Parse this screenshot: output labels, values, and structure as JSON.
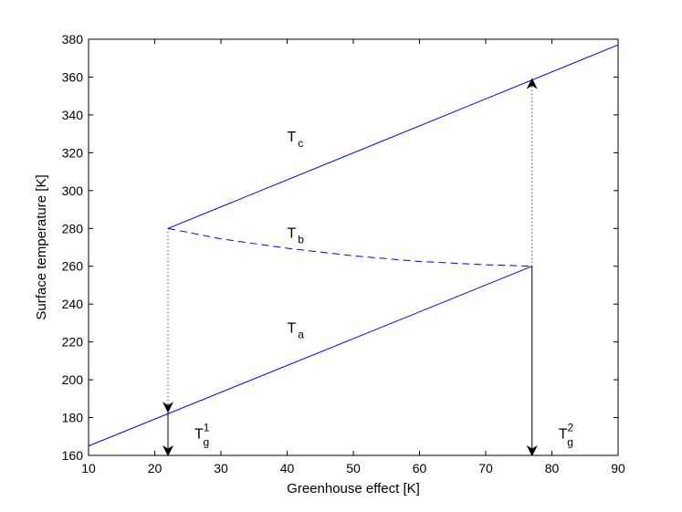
{
  "chart_data": {
    "type": "line",
    "xlabel": "Greenhouse effect [K]",
    "ylabel": "Surface temperature [K]",
    "xlim": [
      10,
      90
    ],
    "ylim": [
      160,
      380
    ],
    "xticks": [
      10,
      20,
      30,
      40,
      50,
      60,
      70,
      80,
      90
    ],
    "yticks": [
      160,
      180,
      200,
      220,
      240,
      260,
      280,
      300,
      320,
      340,
      360,
      380
    ],
    "grid": false,
    "series": [
      {
        "name": "T_a",
        "style": "solid",
        "color": "#0000ff",
        "x": [
          10,
          77
        ],
        "y": [
          165,
          260
        ]
      },
      {
        "name": "T_b",
        "style": "dashed",
        "color": "#0000ff",
        "x": [
          22,
          30,
          40,
          50,
          60,
          70,
          77
        ],
        "y": [
          280,
          274.5,
          269.5,
          265.5,
          262.5,
          260.8,
          260
        ]
      },
      {
        "name": "T_c",
        "style": "solid",
        "color": "#0000ff",
        "x": [
          22,
          90
        ],
        "y": [
          280,
          377
        ]
      }
    ],
    "annotations": [
      {
        "kind": "dotted-arrow",
        "x": 22,
        "y_from": 280,
        "y_to": 183
      },
      {
        "kind": "solid-arrow",
        "x": 22,
        "y_from": 183,
        "y_to": 160
      },
      {
        "kind": "solid-arrow",
        "x": 77,
        "y_from": 260,
        "y_to": 160
      },
      {
        "kind": "dotted-arrow",
        "x": 77,
        "y_from": 260,
        "y_to": 359
      }
    ],
    "labels": [
      {
        "id": "label-ta",
        "main": "T",
        "sub": "a",
        "sup": "",
        "x": 40,
        "y": 225
      },
      {
        "id": "label-tb",
        "main": "T",
        "sub": "b",
        "sup": "",
        "x": 40,
        "y": 275
      },
      {
        "id": "label-tc",
        "main": "T",
        "sub": "c",
        "sup": "",
        "x": 40,
        "y": 326
      },
      {
        "id": "label-tg1",
        "main": "T",
        "sub": "g",
        "sup": "1",
        "x": 26,
        "y": 169
      },
      {
        "id": "label-tg2",
        "main": "T",
        "sub": "g",
        "sup": "2",
        "x": 81,
        "y": 169
      }
    ]
  }
}
